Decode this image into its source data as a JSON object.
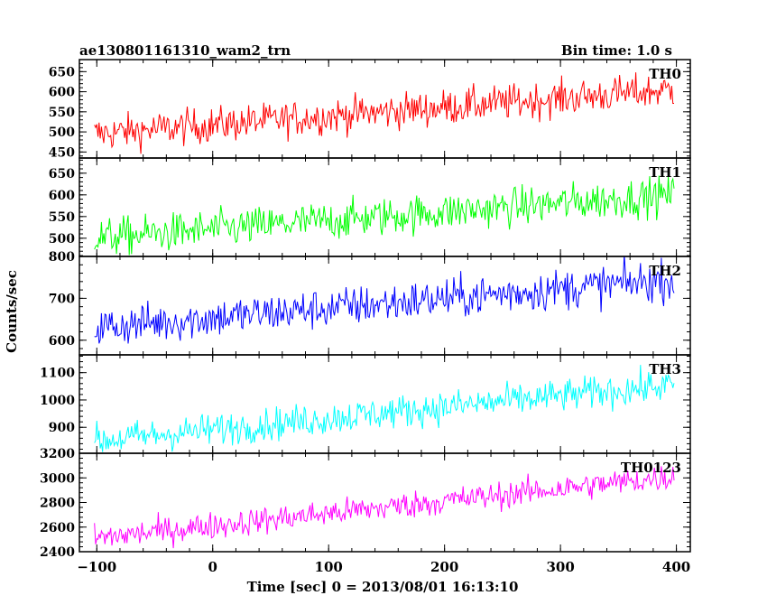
{
  "header": {
    "title": "ae130801161310_wam2_trn",
    "bin_time": "Bin time: 1.0 s"
  },
  "axes": {
    "ylabel": "Counts/sec",
    "xlabel": "Time [sec] 0 = 2013/08/01 16:13:10"
  },
  "chart_data": {
    "type": "line",
    "x_range": [
      -115,
      412
    ],
    "x_ticks": [
      -100,
      0,
      100,
      200,
      300,
      400
    ],
    "x_tick_labels": [
      "−100",
      "0",
      "100",
      "200",
      "300",
      "400"
    ],
    "x_start": -102,
    "x_end": 398,
    "bin_time_s": 1.0,
    "grid": false,
    "panels": [
      {
        "name": "TH0",
        "color": "#ff0000",
        "ylim": [
          435,
          680
        ],
        "y_ticks": [
          450,
          500,
          550,
          600,
          650
        ],
        "y_tick_labels": [
          "450",
          "500",
          "550",
          "600",
          "650"
        ],
        "trend_start": 495,
        "trend_end": 605,
        "noise_sd": 22
      },
      {
        "name": "TH1",
        "color": "#00ff00",
        "ylim": [
          458,
          685
        ],
        "y_ticks": [
          500,
          550,
          600,
          650
        ],
        "y_tick_labels": [
          "500",
          "550",
          "600",
          "650"
        ],
        "trend_start": 500,
        "trend_end": 600,
        "noise_sd": 22
      },
      {
        "name": "TH2",
        "color": "#0000ff",
        "ylim": [
          565,
          800
        ],
        "y_ticks": [
          600,
          700,
          800
        ],
        "y_tick_labels": [
          "600",
          "700",
          "800"
        ],
        "trend_start": 630,
        "trend_end": 745,
        "noise_sd": 24
      },
      {
        "name": "TH3",
        "color": "#00ffff",
        "ylim": [
          805,
          1165
        ],
        "y_ticks": [
          900,
          1000,
          1100
        ],
        "y_tick_labels": [
          "900",
          "1000",
          "1100"
        ],
        "trend_start": 850,
        "trend_end": 1055,
        "noise_sd": 30
      },
      {
        "name": "TH0123",
        "color": "#ff00ff",
        "ylim": [
          2400,
          3200
        ],
        "y_ticks": [
          2400,
          2600,
          2800,
          3000,
          3200
        ],
        "y_tick_labels": [
          "2400",
          "2600",
          "2800",
          "3000",
          "3200"
        ],
        "trend_start": 2510,
        "trend_end": 3010,
        "noise_sd": 55
      }
    ]
  }
}
